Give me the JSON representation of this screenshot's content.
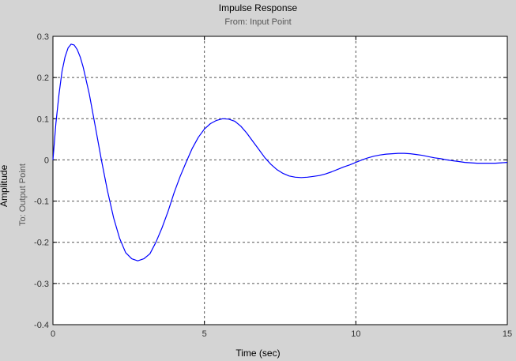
{
  "chart_data": {
    "type": "line",
    "title": "Impulse Response",
    "subtitle": "From: Input Point",
    "xlabel": "Time (sec)",
    "ylabel": "Amplitude",
    "ylabel_secondary": "To: Output Point",
    "xlim": [
      0,
      15
    ],
    "ylim": [
      -0.4,
      0.3
    ],
    "xticks": [
      0,
      5,
      10,
      15
    ],
    "yticks": [
      -0.4,
      -0.3,
      -0.2,
      -0.1,
      0,
      0.1,
      0.2,
      0.3
    ],
    "grid": true,
    "line_color": "#0000ff",
    "series": [
      {
        "x": [
          0,
          0.1,
          0.2,
          0.3,
          0.4,
          0.5,
          0.6,
          0.7,
          0.8,
          0.9,
          1.0,
          1.2,
          1.4,
          1.6,
          1.8,
          2.0,
          2.2,
          2.4,
          2.6,
          2.8,
          3.0,
          3.2,
          3.4,
          3.6,
          3.8,
          4.0,
          4.2,
          4.4,
          4.6,
          4.8,
          5.0,
          5.2,
          5.4,
          5.6,
          5.8,
          6.0,
          6.2,
          6.4,
          6.6,
          6.8,
          7.0,
          7.2,
          7.4,
          7.6,
          7.8,
          8.0,
          8.2,
          8.4,
          8.6,
          8.8,
          9.0,
          9.2,
          9.4,
          9.6,
          9.8,
          10.0,
          10.2,
          10.4,
          10.6,
          10.8,
          11.0,
          11.2,
          11.4,
          11.6,
          11.8,
          12.0,
          12.2,
          12.4,
          12.6,
          12.8,
          13.0,
          13.2,
          13.4,
          13.6,
          13.8,
          14.0,
          14.2,
          14.4,
          14.6,
          14.8,
          15.0
        ],
        "y": [
          0,
          0.09,
          0.16,
          0.215,
          0.25,
          0.272,
          0.281,
          0.279,
          0.268,
          0.25,
          0.225,
          0.16,
          0.08,
          0.0,
          -0.075,
          -0.14,
          -0.19,
          -0.225,
          -0.24,
          -0.245,
          -0.24,
          -0.228,
          -0.2,
          -0.165,
          -0.125,
          -0.08,
          -0.04,
          -0.005,
          0.028,
          0.055,
          0.075,
          0.088,
          0.096,
          0.1,
          0.099,
          0.094,
          0.082,
          0.065,
          0.045,
          0.025,
          0.005,
          -0.011,
          -0.024,
          -0.033,
          -0.039,
          -0.042,
          -0.043,
          -0.042,
          -0.04,
          -0.038,
          -0.034,
          -0.029,
          -0.023,
          -0.017,
          -0.012,
          -0.006,
          0.0,
          0.005,
          0.009,
          0.012,
          0.014,
          0.015,
          0.016,
          0.016,
          0.015,
          0.013,
          0.011,
          0.008,
          0.005,
          0.003,
          0.0,
          -0.002,
          -0.004,
          -0.006,
          -0.007,
          -0.008,
          -0.008,
          -0.008,
          -0.008,
          -0.007,
          -0.006
        ]
      }
    ]
  }
}
